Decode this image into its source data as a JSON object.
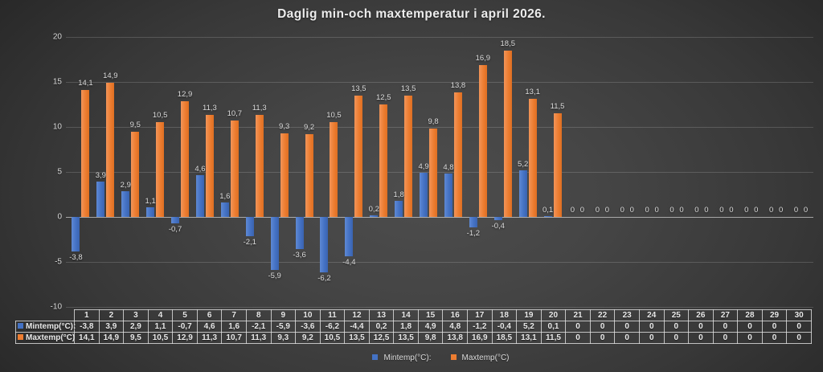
{
  "title": "Daglig min-och maxtemperatur i april 2026.",
  "legend": {
    "min_label": "Mintemp(°C):",
    "max_label": "Maxtemp(°C)"
  },
  "axis": {
    "ticks": [
      20,
      15,
      10,
      5,
      0,
      -5,
      -10
    ]
  },
  "colors": {
    "min_series": "#4472C4",
    "max_series": "#ED7D31",
    "background_center": "#4d4d4d",
    "background_edge": "#232323",
    "gridline": "rgba(255,255,255,0.16)",
    "zero_line": "rgba(255,255,255,0.55)",
    "text": "#e9e9e9"
  },
  "chart_data": {
    "type": "bar",
    "title": "Daglig min-och maxtemperatur i april 2026.",
    "categories": [
      1,
      2,
      3,
      4,
      5,
      6,
      7,
      8,
      9,
      10,
      11,
      12,
      13,
      14,
      15,
      16,
      17,
      18,
      19,
      20,
      21,
      22,
      23,
      24,
      25,
      26,
      27,
      28,
      29,
      30
    ],
    "series": [
      {
        "name": "Mintemp(°C):",
        "color": "#4472C4",
        "values": [
          -3.8,
          3.9,
          2.9,
          1.1,
          -0.7,
          4.6,
          1.6,
          -2.1,
          -5.9,
          -3.6,
          -6.2,
          -4.4,
          0.2,
          1.8,
          4.9,
          4.8,
          -1.2,
          -0.4,
          5.2,
          0.1,
          0,
          0,
          0,
          0,
          0,
          0,
          0,
          0,
          0,
          0
        ]
      },
      {
        "name": "Maxtemp(°C)",
        "color": "#ED7D31",
        "values": [
          14.1,
          14.9,
          9.5,
          10.5,
          12.9,
          11.3,
          10.7,
          11.3,
          9.3,
          9.2,
          10.5,
          13.5,
          12.5,
          13.5,
          9.8,
          13.8,
          16.9,
          18.5,
          13.1,
          11.5,
          0,
          0,
          0,
          0,
          0,
          0,
          0,
          0,
          0,
          0
        ]
      }
    ],
    "ylim": [
      -10,
      20
    ],
    "ytick_step": 5,
    "grid": true,
    "data_labels": true,
    "data_table_shown": true,
    "legend_position": "bottom",
    "decimal_separator": ","
  }
}
